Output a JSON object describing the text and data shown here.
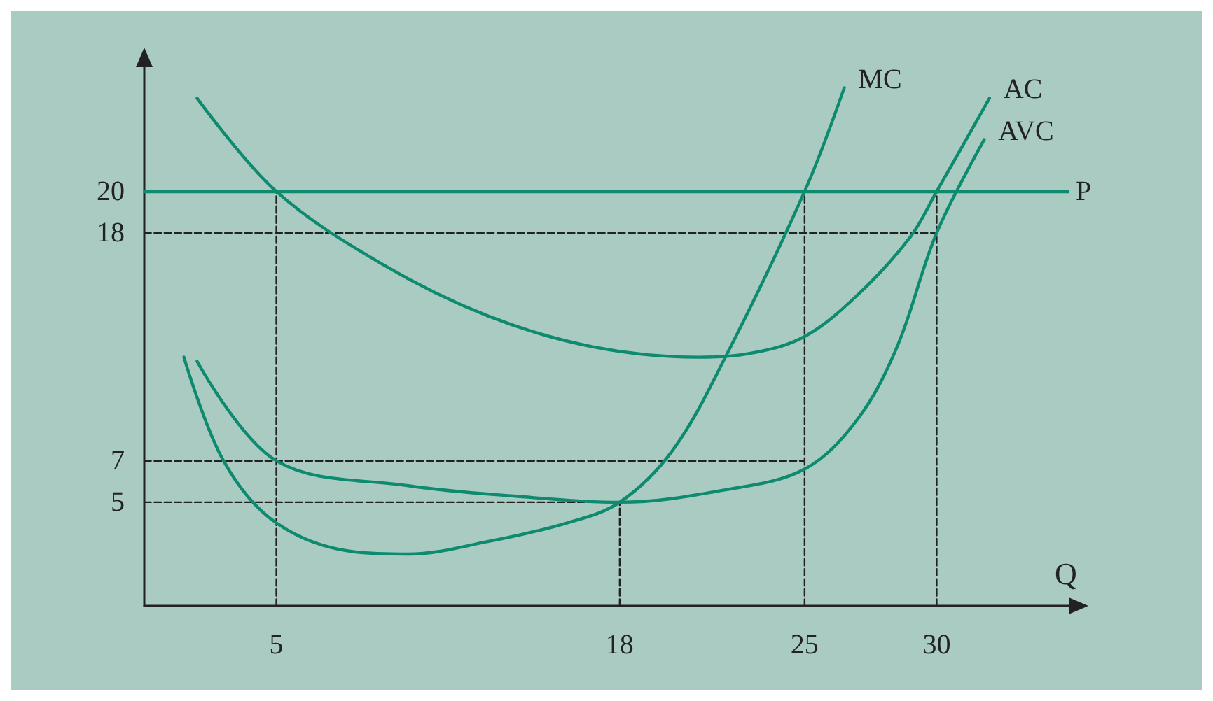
{
  "chart_data": {
    "type": "line",
    "xlabel": "Q",
    "xlim": [
      0,
      35
    ],
    "ylim": [
      0,
      26
    ],
    "xticks": [
      5,
      18,
      25,
      30
    ],
    "yticks": [
      5,
      7,
      18,
      20
    ],
    "grid": false,
    "legend": false,
    "marker": "none",
    "line_style": "solid",
    "series": [
      {
        "name": "MC",
        "color": "#0e8a6f",
        "x": [
          1.5,
          3,
          5,
          8,
          10,
          13,
          16,
          18,
          20,
          22,
          25,
          26.5
        ],
        "values": [
          12,
          7,
          4,
          2.6,
          2.5,
          3.1,
          4,
          5,
          7.5,
          12,
          20,
          25
        ]
      },
      {
        "name": "AC",
        "color": "#0e8a6f",
        "x": [
          2,
          5,
          9,
          13,
          17,
          21,
          23,
          25,
          27,
          29,
          30,
          32
        ],
        "values": [
          24.5,
          20,
          16.5,
          14,
          12.5,
          12,
          12.2,
          13,
          15,
          17.8,
          20,
          24.5
        ]
      },
      {
        "name": "AVC",
        "color": "#0e8a6f",
        "x": [
          2,
          5,
          10,
          14,
          18,
          22,
          25,
          27,
          28.5,
          30,
          31.8
        ],
        "values": [
          11.8,
          7,
          5.8,
          5.3,
          5,
          5.6,
          6.6,
          9,
          12.5,
          18,
          22.5
        ]
      },
      {
        "color": "#222222",
        "line_style": "dashed",
        "x": [
          0,
          30
        ],
        "values": [
          18,
          18
        ]
      },
      {
        "color": "#222222",
        "line_style": "dashed",
        "x": [
          0,
          25
        ],
        "values": [
          7,
          7
        ]
      },
      {
        "color": "#222222",
        "line_style": "dashed",
        "x": [
          0,
          18
        ],
        "values": [
          5,
          5
        ]
      },
      {
        "color": "#222222",
        "line_style": "dashed",
        "x": [
          5,
          5
        ],
        "values": [
          0,
          20
        ]
      },
      {
        "color": "#222222",
        "line_style": "dashed",
        "x": [
          18,
          18
        ],
        "values": [
          0,
          5
        ]
      },
      {
        "color": "#222222",
        "line_style": "dashed",
        "x": [
          25,
          25
        ],
        "values": [
          0,
          20
        ]
      },
      {
        "color": "#222222",
        "line_style": "dashed",
        "x": [
          30,
          30
        ],
        "values": [
          0,
          20
        ]
      }
    ],
    "ref_lines": [
      {
        "axis": "y",
        "value": 20,
        "label": "P",
        "color": "#0e8a6f"
      }
    ]
  }
}
